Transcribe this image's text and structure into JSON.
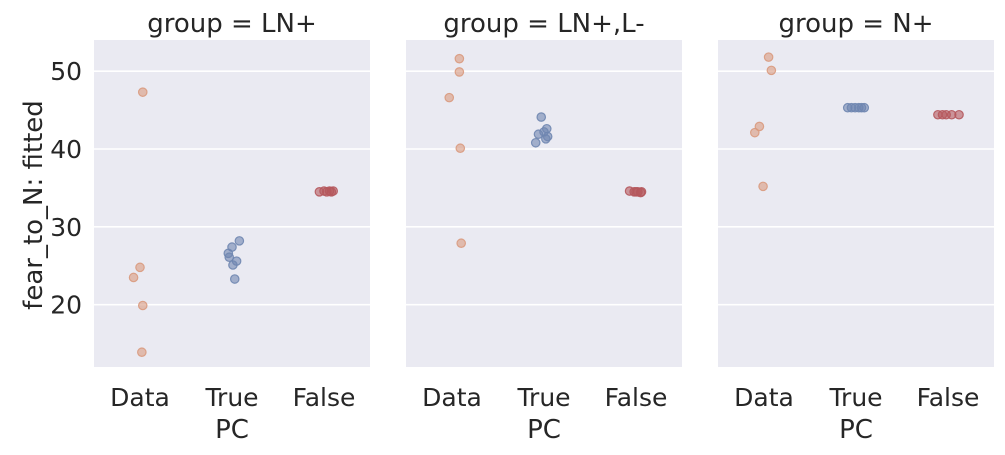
{
  "chart_data": {
    "type": "scatter",
    "ylabel": "fear_to_N: fitted",
    "xlabel": "PC",
    "categories": [
      "Data",
      "True",
      "False"
    ],
    "ylim": [
      12,
      54
    ],
    "yticks": [
      20,
      30,
      40,
      50
    ],
    "grid": true,
    "colors": {
      "Data": "#d99a7e",
      "True": "#6f86b0",
      "False": "#b5585d",
      "background": "#eaeaf2",
      "grid": "#ffffff"
    },
    "facets": [
      {
        "title": "group = LN+",
        "points": {
          "Data": [
            {
              "x": 0.03,
              "y": 47.3
            },
            {
              "x": -0.07,
              "y": 23.5
            },
            {
              "x": 0.0,
              "y": 24.8
            },
            {
              "x": 0.03,
              "y": 19.9
            },
            {
              "x": 0.02,
              "y": 13.9
            }
          ],
          "True": [
            {
              "x": 0.08,
              "y": 28.2
            },
            {
              "x": 0.0,
              "y": 27.4
            },
            {
              "x": -0.04,
              "y": 26.6
            },
            {
              "x": -0.03,
              "y": 26.1
            },
            {
              "x": 0.05,
              "y": 25.6
            },
            {
              "x": 0.01,
              "y": 25.1
            },
            {
              "x": 0.03,
              "y": 23.3
            }
          ],
          "False": [
            {
              "x": -0.05,
              "y": 34.5
            },
            {
              "x": 0.0,
              "y": 34.6
            },
            {
              "x": 0.03,
              "y": 34.5
            },
            {
              "x": 0.06,
              "y": 34.6
            },
            {
              "x": 0.08,
              "y": 34.5
            },
            {
              "x": 0.1,
              "y": 34.6
            }
          ]
        }
      },
      {
        "title": "group = LN+,L-",
        "points": {
          "Data": [
            {
              "x": 0.08,
              "y": 51.6
            },
            {
              "x": 0.08,
              "y": 49.9
            },
            {
              "x": -0.03,
              "y": 46.6
            },
            {
              "x": 0.09,
              "y": 40.1
            },
            {
              "x": 0.1,
              "y": 27.9
            }
          ],
          "True": [
            {
              "x": -0.03,
              "y": 44.1
            },
            {
              "x": 0.03,
              "y": 42.6
            },
            {
              "x": 0.0,
              "y": 42.2
            },
            {
              "x": -0.06,
              "y": 41.9
            },
            {
              "x": 0.04,
              "y": 41.6
            },
            {
              "x": 0.02,
              "y": 41.3
            },
            {
              "x": -0.09,
              "y": 40.8
            }
          ],
          "False": [
            {
              "x": -0.07,
              "y": 34.6
            },
            {
              "x": -0.02,
              "y": 34.5
            },
            {
              "x": 0.0,
              "y": 34.5
            },
            {
              "x": 0.02,
              "y": 34.5
            },
            {
              "x": 0.05,
              "y": 34.4
            },
            {
              "x": 0.06,
              "y": 34.5
            }
          ]
        }
      },
      {
        "title": "group = N+",
        "points": {
          "Data": [
            {
              "x": 0.05,
              "y": 51.8
            },
            {
              "x": 0.08,
              "y": 50.1
            },
            {
              "x": -0.05,
              "y": 42.9
            },
            {
              "x": -0.1,
              "y": 42.1
            },
            {
              "x": -0.01,
              "y": 35.2
            }
          ],
          "True": [
            {
              "x": -0.09,
              "y": 45.3
            },
            {
              "x": -0.05,
              "y": 45.3
            },
            {
              "x": -0.01,
              "y": 45.3
            },
            {
              "x": 0.03,
              "y": 45.3
            },
            {
              "x": 0.06,
              "y": 45.3
            },
            {
              "x": 0.09,
              "y": 45.3
            }
          ],
          "False": [
            {
              "x": -0.11,
              "y": 44.4
            },
            {
              "x": -0.06,
              "y": 44.4
            },
            {
              "x": -0.02,
              "y": 44.4
            },
            {
              "x": 0.04,
              "y": 44.4
            },
            {
              "x": 0.12,
              "y": 44.4
            }
          ]
        }
      }
    ]
  }
}
